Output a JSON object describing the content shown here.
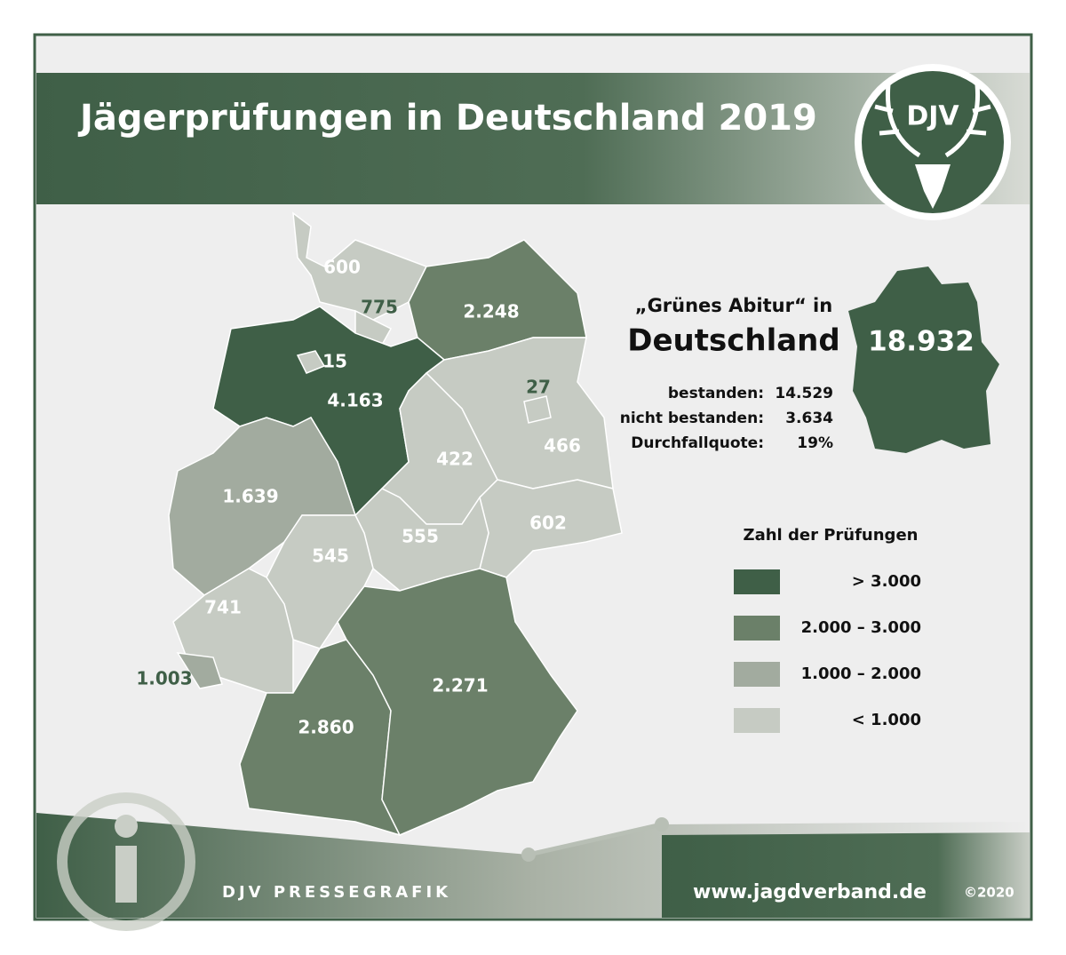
{
  "header": {
    "title": "Jägerprüfungen in Deutschland 2019",
    "logo": "DJV"
  },
  "map": {
    "regions": [
      {
        "label": "600",
        "color": "#c6cbc3"
      },
      {
        "label": "775",
        "color": "#c6cbc3"
      },
      {
        "label": "2.248",
        "color": "#6b8069"
      },
      {
        "label": "4.163",
        "color": "#3f5f47"
      },
      {
        "label": "15",
        "color": "#c6cbc3"
      },
      {
        "label": "466",
        "color": "#c6cbc3"
      },
      {
        "label": "27",
        "color": "#c6cbc3"
      },
      {
        "label": "422",
        "color": "#c6cbc3"
      },
      {
        "label": "602",
        "color": "#c6cbc3"
      },
      {
        "label": "555",
        "color": "#c6cbc3"
      },
      {
        "label": "1.639",
        "color": "#a2ab9f"
      },
      {
        "label": "545",
        "color": "#c6cbc3"
      },
      {
        "label": "741",
        "color": "#c6cbc3"
      },
      {
        "label": "1.003",
        "color": "#a2ab9f"
      },
      {
        "label": "2.860",
        "color": "#6b8069"
      },
      {
        "label": "2.271",
        "color": "#6b8069"
      }
    ]
  },
  "summary": {
    "heading": "„Grünes Abitur“ in",
    "country": "Deutschland",
    "total": "18.932",
    "rows": [
      [
        "bestanden:",
        "14.529"
      ],
      [
        "nicht bestanden:",
        "3.634"
      ],
      [
        "Durchfallquote:",
        "19%"
      ]
    ]
  },
  "legend": {
    "title": "Zahl der Prüfungen",
    "items": [
      {
        "label": "> 3.000",
        "color": "#3f5f47"
      },
      {
        "label": "2.000 – 3.000",
        "color": "#6b8069"
      },
      {
        "label": "1.000 – 2.000",
        "color": "#a2ab9f"
      },
      {
        "label": "< 1.000",
        "color": "#c6cbc3"
      }
    ]
  },
  "footer": {
    "brand": "DJV PRESSEGRAFIK",
    "url": "www.jagdverband.de",
    "copyright": "©2020"
  }
}
